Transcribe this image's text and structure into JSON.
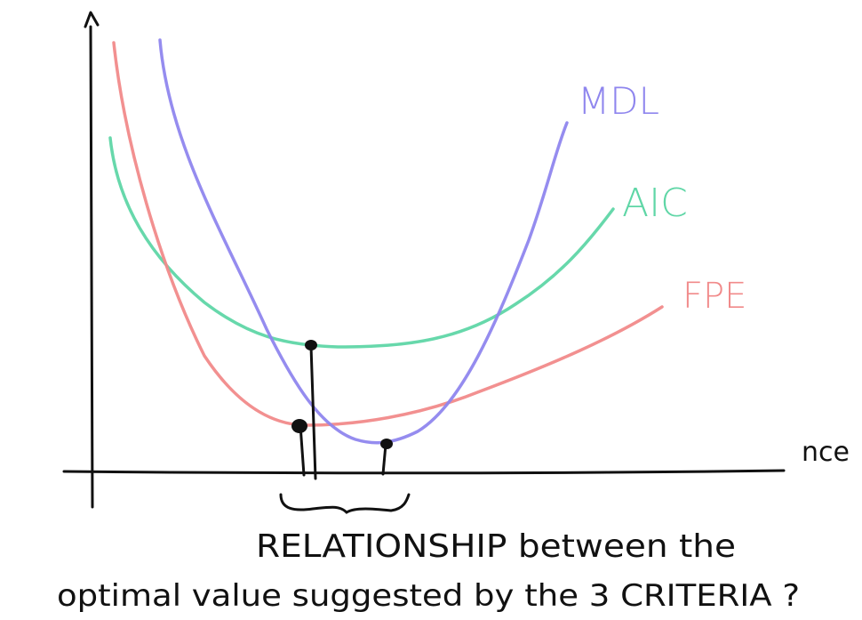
{
  "colors": {
    "ink": "#111111",
    "mdl": "#8f86ee",
    "aic": "#5fd6a6",
    "fpe": "#f18a8a"
  },
  "curves": [
    {
      "name": "MDL",
      "color": "#8f86ee"
    },
    {
      "name": "AIC",
      "color": "#5fd6a6"
    },
    {
      "name": "FPE",
      "color": "#f18a8a"
    }
  ],
  "axis": {
    "x_label": "nce"
  },
  "labels": {
    "mdl": "MDL",
    "aic": "AIC",
    "fpe": "FPE"
  },
  "caption": {
    "line1": "RELATIONSHIP between the",
    "line2": "optimal value suggested by the 3 CRITERIA ?"
  }
}
